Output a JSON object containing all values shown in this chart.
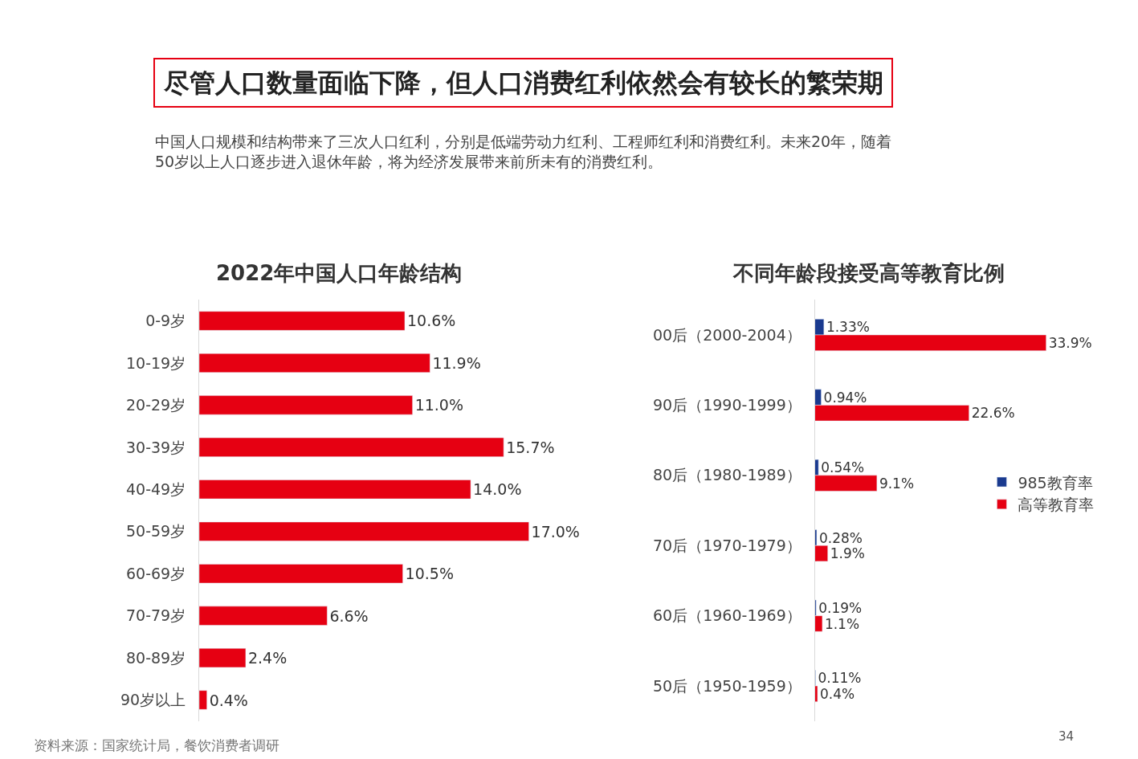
{
  "chart_data": [
    {
      "type": "bar",
      "orientation": "horizontal",
      "title": "2022年中国人口年龄结构",
      "tick_labels": "y",
      "legend": false,
      "categories": [
        "0-9岁",
        "10-19岁",
        "20-29岁",
        "30-39岁",
        "40-49岁",
        "50-59岁",
        "60-69岁",
        "70-79岁",
        "80-89岁",
        "90岁以上"
      ],
      "series": [
        {
          "color": "#e60012",
          "values": [
            10.6,
            11.9,
            11.0,
            15.7,
            14.0,
            17.0,
            10.5,
            6.6,
            2.4,
            0.4
          ],
          "value_labels": [
            "10.6%",
            "11.9%",
            "11.0%",
            "15.7%",
            "14.0%",
            "17.0%",
            "10.5%",
            "6.6%",
            "2.4%",
            "0.4%"
          ]
        }
      ],
      "annotations": [
        "尽管人口数量面临下降，但人口消费红利依然会有较长的繁荣期",
        "中国人口规模和结构带来了三次人口红利，分别是低端劳动力红利、工程师红利和消费红利。未来20年，随着\n50岁以上人口逐步进入退休年龄，将为经济发展带来前所未有的消费红利。"
      ]
    },
    {
      "type": "bar",
      "orientation": "horizontal",
      "title": "不同年龄段接受高等教育比例",
      "tick_labels": "y",
      "legend": "right",
      "categories": [
        "00后（2000-2004）",
        "90后（1990-1999）",
        "80后（1980-1989）",
        "70后（1970-1979）",
        "60后（1960-1969）",
        "50后（1950-1959）"
      ],
      "series": [
        {
          "name": "985教育率",
          "color": "#1a3a8f",
          "values": [
            1.33,
            0.94,
            0.54,
            0.28,
            0.19,
            0.11
          ],
          "value_labels": [
            "1.33%",
            "0.94%",
            "0.54%",
            "0.28%",
            "0.19%",
            "0.11%"
          ]
        },
        {
          "name": "高等教育率",
          "color": "#e60012",
          "values": [
            33.9,
            22.6,
            9.1,
            1.9,
            1.1,
            0.4
          ],
          "value_labels": [
            "33.9%",
            "22.6%",
            "9.1%",
            "1.9%",
            "1.1%",
            "0.4%"
          ]
        }
      ],
      "annotations": [
        "资料来源：国家统计局，餐饮消费者调研",
        "34"
      ]
    }
  ]
}
